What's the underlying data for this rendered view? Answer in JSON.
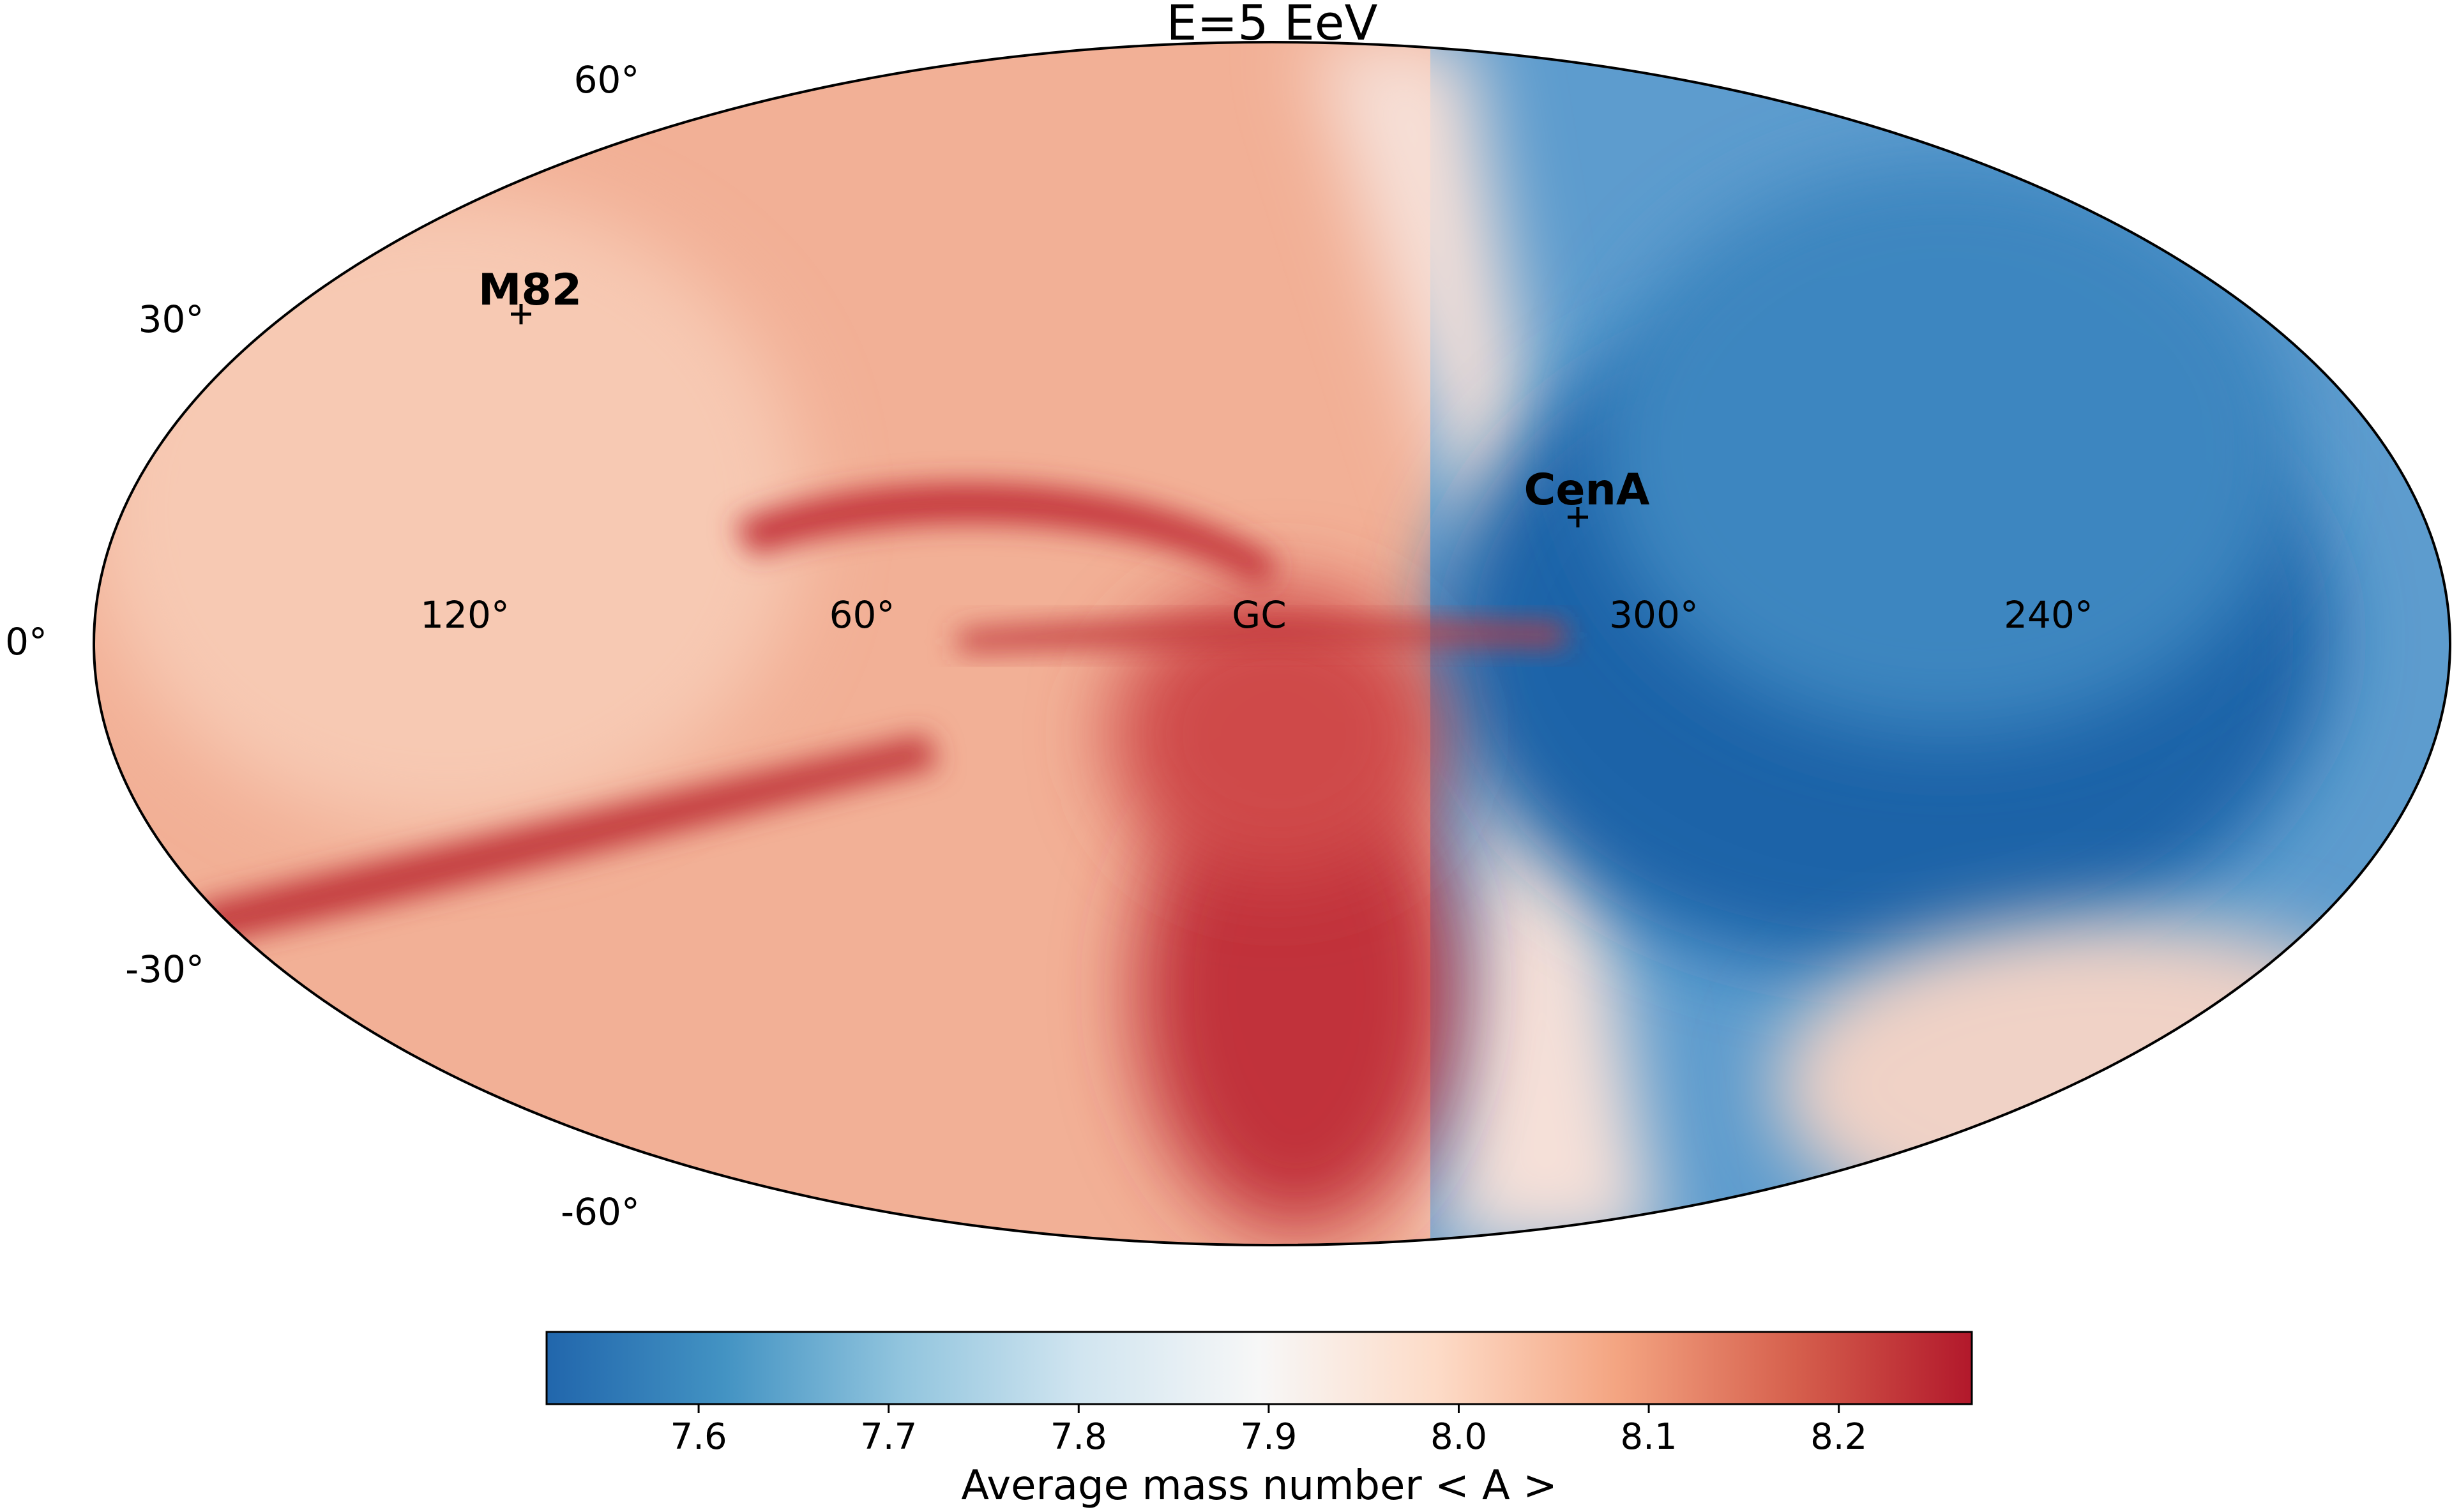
{
  "chart_data": {
    "type": "heatmap",
    "projection": "mollweide",
    "title": "E=5 EeV",
    "latitude_tick_labels": [
      {
        "value": 60,
        "text": "60°"
      },
      {
        "value": 30,
        "text": "30°"
      },
      {
        "value": 0,
        "text": "0°"
      },
      {
        "value": -30,
        "text": "-30°"
      },
      {
        "value": -60,
        "text": "-60°"
      }
    ],
    "longitude_tick_labels": [
      {
        "value": 120,
        "text": "120°"
      },
      {
        "value": 60,
        "text": "60°"
      },
      {
        "value": 0,
        "text": "GC"
      },
      {
        "value": 300,
        "text": "300°"
      },
      {
        "value": 240,
        "text": "240°"
      }
    ],
    "sources": [
      {
        "name": "M82",
        "l": 141.4,
        "b": 40.6
      },
      {
        "name": "CenA",
        "l": 309.5,
        "b": 19.4
      }
    ],
    "colorbar": {
      "label": "Average mass number < A >",
      "min": 7.52,
      "max": 8.27,
      "ticks": [
        7.6,
        7.7,
        7.8,
        7.9,
        8.0,
        8.1,
        8.2
      ],
      "tick_labels": [
        "7.6",
        "7.7",
        "7.8",
        "7.9",
        "8.0",
        "8.1",
        "8.2"
      ],
      "colormap": "RdBu_r",
      "colors": [
        "#2166ac",
        "#4393c3",
        "#92c5de",
        "#d1e5f0",
        "#f7f7f7",
        "#fddbc7",
        "#f4a582",
        "#d6604d",
        "#b2182b"
      ]
    },
    "regions": [
      {
        "description_l_range": "0-180",
        "dominant_value": 8.08
      },
      {
        "description_l_range": "180-360",
        "dominant_value": 7.66
      }
    ]
  }
}
